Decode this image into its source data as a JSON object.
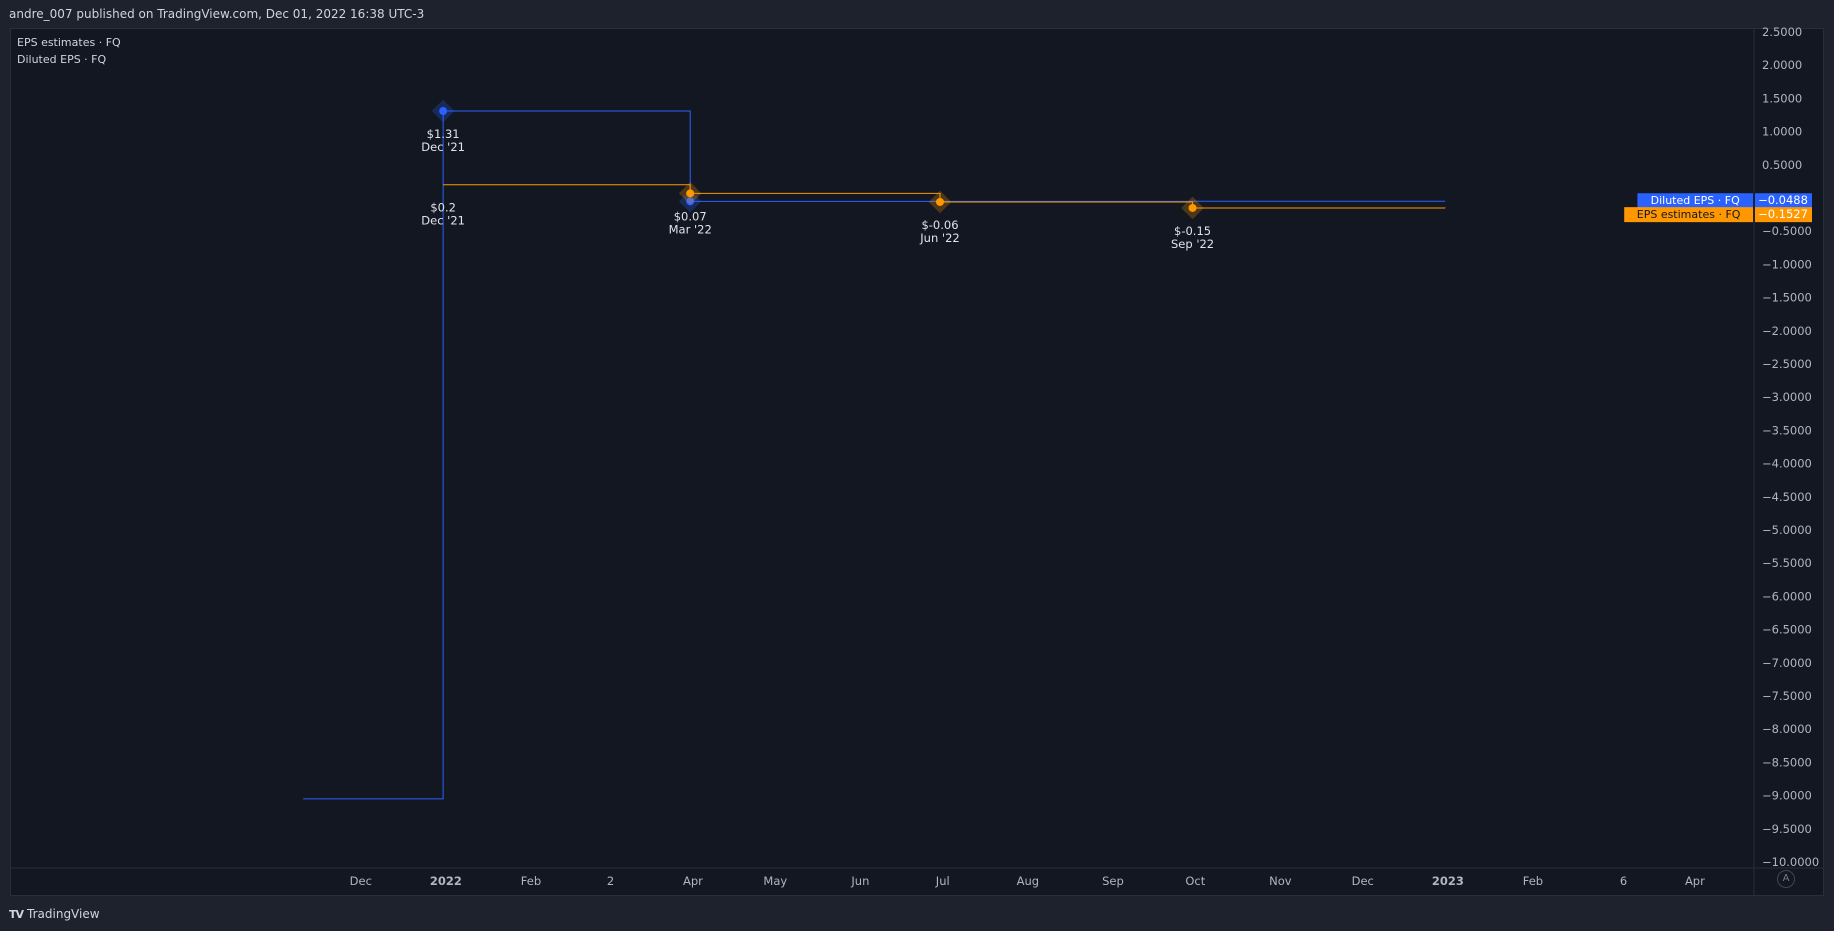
{
  "header": {
    "published_text": "andre_007 published on TradingView.com, Dec 01, 2022 16:38 UTC-3"
  },
  "footer": {
    "logo_text": "TradingView",
    "logo_mark": "TV",
    "auto_scale_label": "A"
  },
  "legend": {
    "items": [
      "EPS estimates · FQ",
      "Diluted EPS · FQ"
    ]
  },
  "colors": {
    "diluted": "#2962ff",
    "estimates": "#ff9800",
    "background": "#131722",
    "axis_text": "#b2b5be"
  },
  "chart_data": {
    "type": "line",
    "step": true,
    "grid": false,
    "ylim": [
      -10.0,
      2.5
    ],
    "y_ticks": [
      "2.5000",
      "2.0000",
      "1.5000",
      "1.0000",
      "0.5000",
      "−0.5000",
      "−1.0000",
      "−1.5000",
      "−2.0000",
      "−2.5000",
      "−3.0000",
      "−3.5000",
      "−4.0000",
      "−4.5000",
      "−5.0000",
      "−5.5000",
      "−6.0000",
      "−6.5000",
      "−7.0000",
      "−7.5000",
      "−8.0000",
      "−8.5000",
      "−9.0000",
      "−9.5000",
      "−10.0000"
    ],
    "y_tick_values": [
      2.5,
      2.0,
      1.5,
      1.0,
      0.5,
      -0.5,
      -1.0,
      -1.5,
      -2.0,
      -2.5,
      -3.0,
      -3.5,
      -4.0,
      -4.5,
      -5.0,
      -5.5,
      -6.0,
      -6.5,
      -7.0,
      -7.5,
      -8.0,
      -8.5,
      -9.0,
      -9.5,
      -10.0
    ],
    "x_ticks": [
      "Dec",
      "2022",
      "Feb",
      "2",
      "Apr",
      "May",
      "Jun",
      "Jul",
      "Aug",
      "Sep",
      "Oct",
      "Nov",
      "Dec",
      "2023",
      "Feb",
      "6",
      "Apr"
    ],
    "x_tick_dates": [
      "2021-12-01",
      "2022-01-01",
      "2022-02-01",
      "2022-03-02",
      "2022-04-01",
      "2022-05-01",
      "2022-06-01",
      "2022-07-01",
      "2022-08-01",
      "2022-09-01",
      "2022-10-01",
      "2022-11-01",
      "2022-12-01",
      "2023-01-01",
      "2023-02-01",
      "2023-03-06",
      "2023-04-01"
    ],
    "x_range": [
      "2021-10-18",
      "2023-05-02"
    ],
    "series": [
      {
        "name": "Diluted EPS · FQ",
        "color": "#2962ff",
        "last_value": "−0.0488",
        "points": [
          {
            "date": "2021-11-10",
            "value": -9.05
          },
          {
            "date": "2021-12-31",
            "value": 1.31
          },
          {
            "date": "2022-03-31",
            "value": -0.05
          },
          {
            "date": "2022-06-30",
            "value": -0.05
          },
          {
            "date": "2022-09-30",
            "value": -0.0488
          },
          {
            "date": "2022-12-31",
            "value": -0.0488
          }
        ],
        "markers": [
          {
            "date": "2021-12-31",
            "value": 1.31,
            "label": "$1.31",
            "period": "Dec '21"
          },
          {
            "date": "2022-03-31",
            "value": -0.05,
            "label": "",
            "period": ""
          }
        ]
      },
      {
        "name": "EPS estimates · FQ",
        "color": "#ff9800",
        "last_value": "−0.1527",
        "points": [
          {
            "date": "2021-12-31",
            "value": 0.2
          },
          {
            "date": "2022-03-31",
            "value": 0.07
          },
          {
            "date": "2022-06-30",
            "value": -0.06
          },
          {
            "date": "2022-09-30",
            "value": -0.15
          },
          {
            "date": "2022-12-31",
            "value": -0.1527
          }
        ],
        "markers": [
          {
            "date": "2021-12-31",
            "value": 0.2,
            "label": "$0.2",
            "period": "Dec '21",
            "hidden_dot": true
          },
          {
            "date": "2022-03-31",
            "value": 0.07,
            "label": "$0.07",
            "period": "Mar '22"
          },
          {
            "date": "2022-06-30",
            "value": -0.06,
            "label": "$-0.06",
            "period": "Jun '22"
          },
          {
            "date": "2022-09-30",
            "value": -0.15,
            "label": "$-0.15",
            "period": "Sep '22"
          }
        ]
      }
    ],
    "price_labels": [
      {
        "series": "Diluted EPS · FQ",
        "value": "−0.0488",
        "at": -0.0488,
        "color": "#2962ff"
      },
      {
        "series": "EPS estimates · FQ",
        "value": "−0.1527",
        "at": -0.1527,
        "color": "#ff9800"
      }
    ]
  }
}
